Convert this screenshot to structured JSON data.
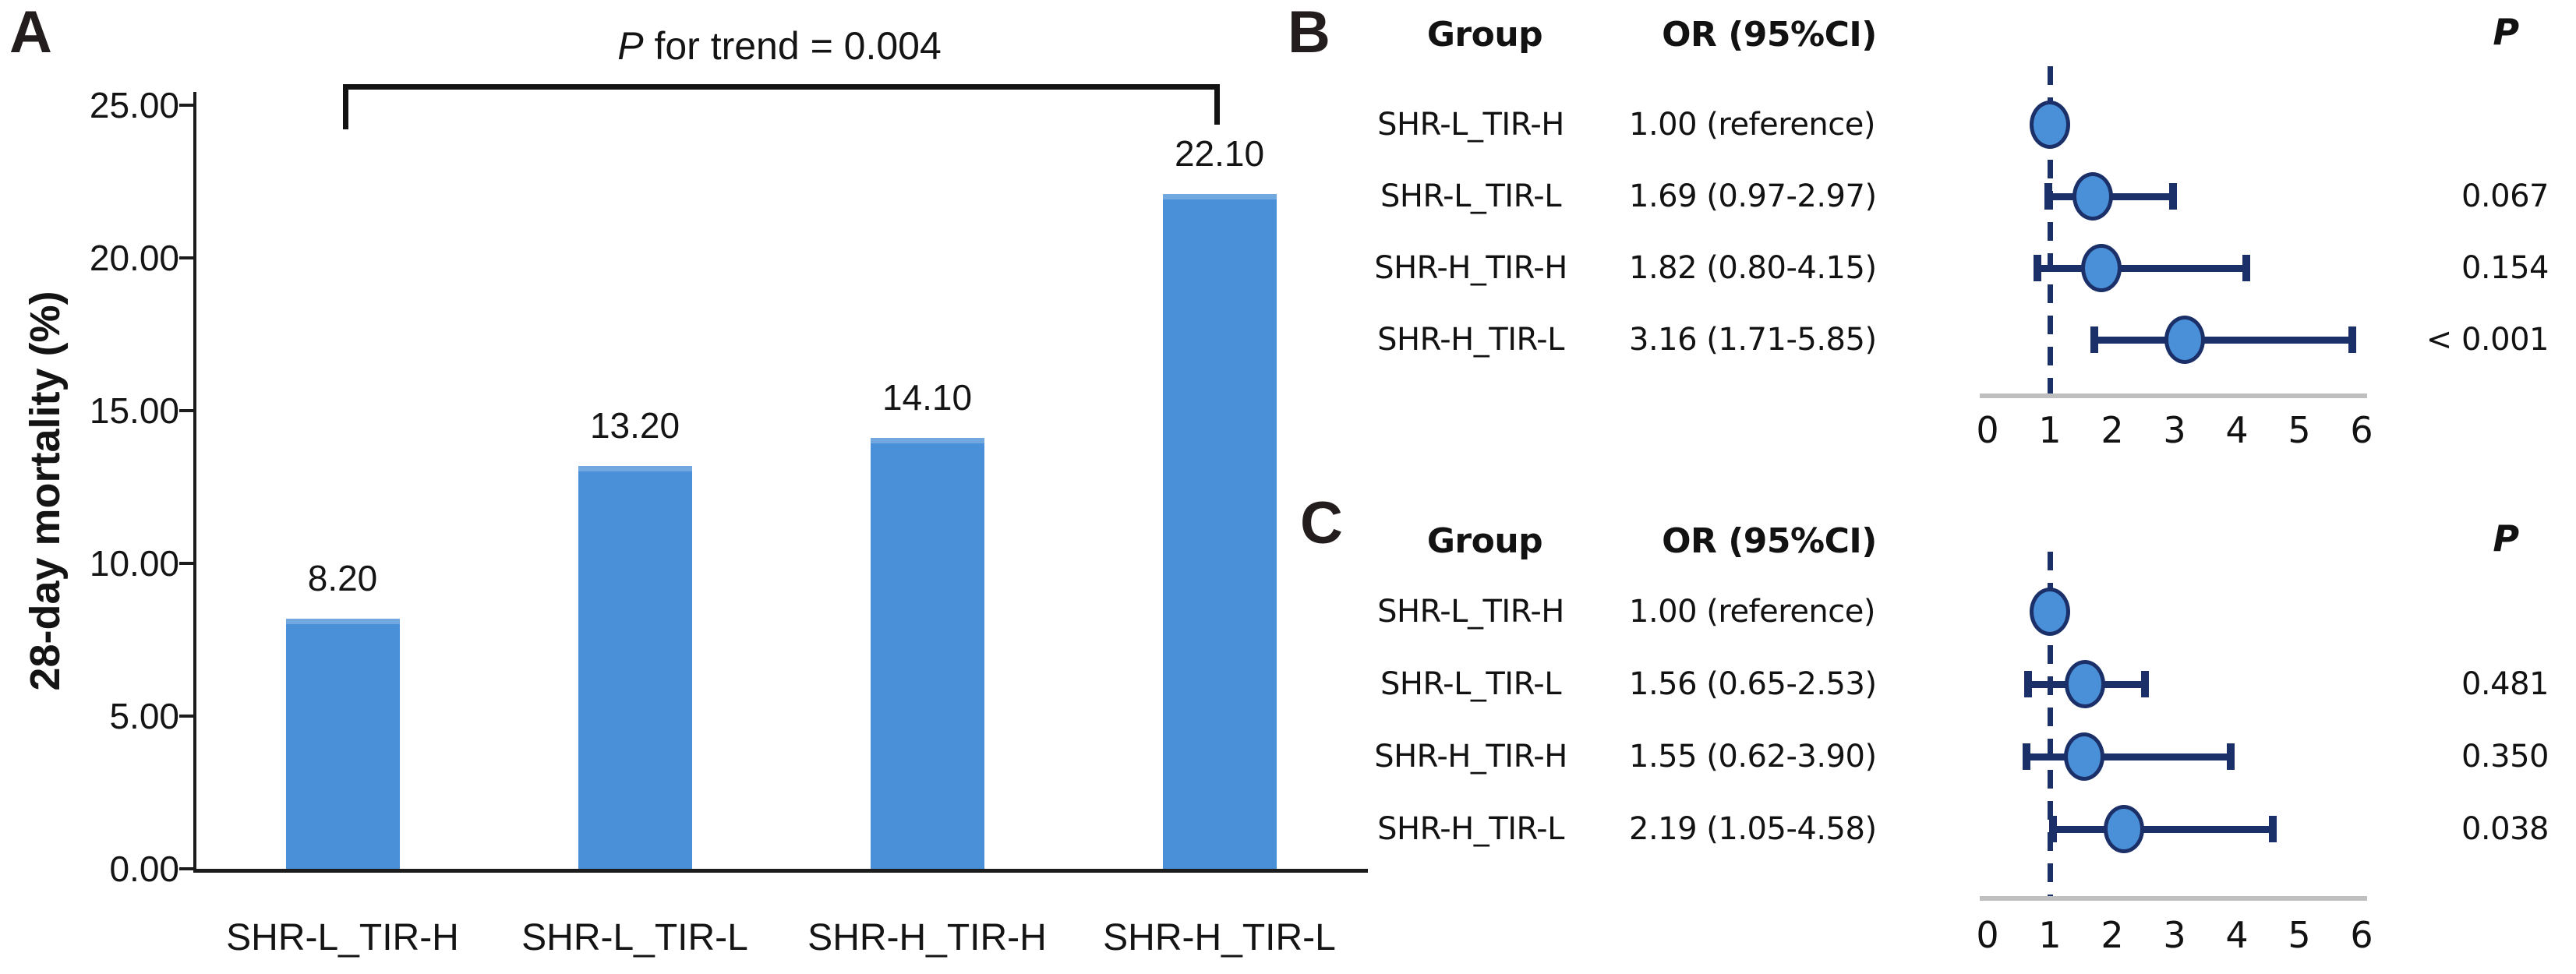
{
  "colors": {
    "bar_blue": "#4a90d8",
    "marker_fill": "#4a90d8",
    "navy_line": "#1b3068",
    "axis_black": "#1c1c1c",
    "baseline_gray": "#bfbfbf",
    "text": "#141414"
  },
  "panels": {
    "a": {
      "label": "A",
      "p_trend_italic": "P",
      "p_trend_text": " for trend = 0.004",
      "ylabel": "28-day mortality (%)"
    },
    "b": {
      "label": "B",
      "col_group": "Group",
      "col_or": "OR (95%CI)",
      "col_p": "P"
    },
    "c": {
      "label": "C",
      "col_group": "Group",
      "col_or": "OR (95%CI)",
      "col_p": "P"
    }
  },
  "chart_data": [
    {
      "id": "A",
      "type": "bar",
      "title": "P for trend = 0.004",
      "xlabel": "",
      "ylabel": "28-day mortality (%)",
      "ylim": [
        0,
        25
      ],
      "grid": false,
      "categories": [
        "SHR-L_TIR-H",
        "SHR-L_TIR-L",
        "SHR-H_TIR-H",
        "SHR-H_TIR-L"
      ],
      "values": [
        8.2,
        13.2,
        14.1,
        22.1
      ],
      "value_labels": [
        "8.20",
        "13.20",
        "14.10",
        "22.10"
      ],
      "yticks": [
        {
          "v": 0,
          "label": "0.00"
        },
        {
          "v": 5,
          "label": "5.00"
        },
        {
          "v": 10,
          "label": "10.00"
        },
        {
          "v": 15,
          "label": "15.00"
        },
        {
          "v": 20,
          "label": "20.00"
        },
        {
          "v": 25,
          "label": "25.00"
        }
      ],
      "p_for_trend": "0.004"
    },
    {
      "id": "B",
      "type": "forest",
      "xlim": [
        0,
        6
      ],
      "xticks": [
        0,
        1,
        2,
        3,
        4,
        5,
        6
      ],
      "ref_line": 1,
      "rows": [
        {
          "group": "SHR-L_TIR-H",
          "or_text": "1.00 (reference)",
          "or": 1.0,
          "ci": null,
          "p": ""
        },
        {
          "group": "SHR-L_TIR-L",
          "or_text": "1.69 (0.97-2.97)",
          "or": 1.69,
          "ci": [
            0.97,
            2.97
          ],
          "p": "0.067"
        },
        {
          "group": "SHR-H_TIR-H",
          "or_text": "1.82 (0.80-4.15)",
          "or": 1.82,
          "ci": [
            0.8,
            4.15
          ],
          "p": "0.154"
        },
        {
          "group": "SHR-H_TIR-L",
          "or_text": "3.16 (1.71-5.85)",
          "or": 3.16,
          "ci": [
            1.71,
            5.85
          ],
          "p": "< 0.001"
        }
      ]
    },
    {
      "id": "C",
      "type": "forest",
      "xlim": [
        0,
        6
      ],
      "xticks": [
        0,
        1,
        2,
        3,
        4,
        5,
        6
      ],
      "ref_line": 1,
      "rows": [
        {
          "group": "SHR-L_TIR-H",
          "or_text": "1.00 (reference)",
          "or": 1.0,
          "ci": null,
          "p": ""
        },
        {
          "group": "SHR-L_TIR-L",
          "or_text": "1.56 (0.65-2.53)",
          "or": 1.56,
          "ci": [
            0.65,
            2.53
          ],
          "p": "0.481"
        },
        {
          "group": "SHR-H_TIR-H",
          "or_text": "1.55 (0.62-3.90)",
          "or": 1.55,
          "ci": [
            0.62,
            3.9
          ],
          "p": "0.350"
        },
        {
          "group": "SHR-H_TIR-L",
          "or_text": "2.19 (1.05-4.58)",
          "or": 2.19,
          "ci": [
            1.05,
            4.58
          ],
          "p": "0.038"
        }
      ]
    }
  ]
}
